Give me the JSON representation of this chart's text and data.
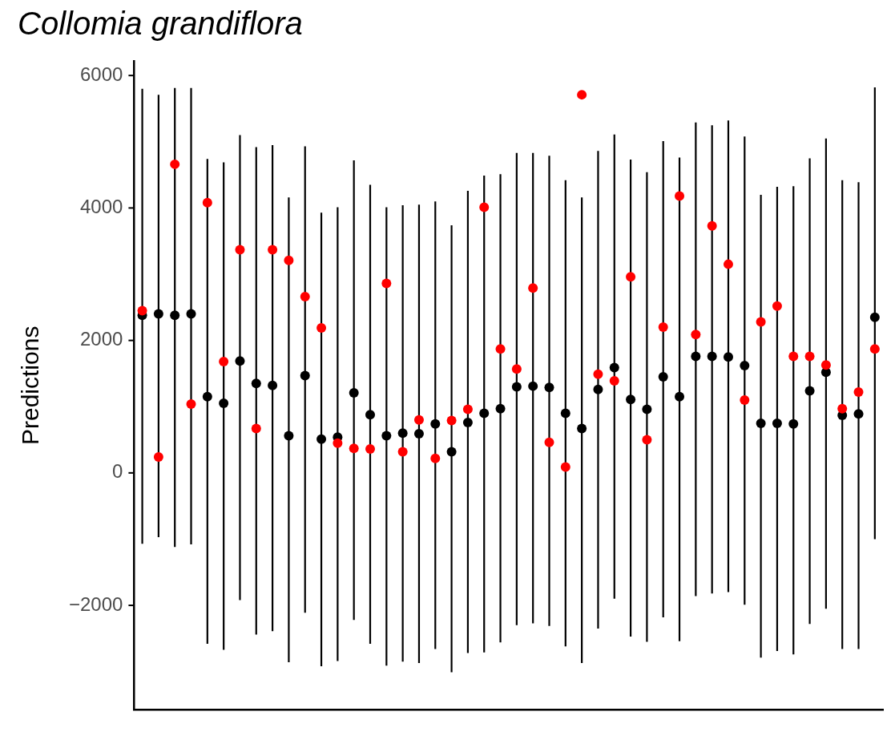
{
  "chart_data": {
    "type": "scatter",
    "title": "Collomia grandiflora",
    "ylabel": "Predictions",
    "categories": [
      null,
      null,
      null,
      null,
      null,
      null,
      null,
      null,
      null,
      null,
      null,
      null,
      null,
      null,
      null,
      null,
      null,
      null,
      null,
      null,
      null,
      null,
      null,
      null,
      null,
      null,
      null,
      null,
      null,
      null,
      null,
      null,
      null,
      null,
      null,
      null,
      null,
      null,
      null,
      null,
      null,
      null,
      null,
      null,
      null,
      null
    ],
    "series": [
      {
        "color": "#000000",
        "values": [
          2380,
          2400,
          2380,
          2400,
          1150,
          1050,
          1690,
          1350,
          1320,
          560,
          1470,
          510,
          540,
          1210,
          880,
          560,
          600,
          590,
          740,
          320,
          760,
          900,
          970,
          1300,
          1310,
          1290,
          900,
          670,
          1260,
          1590,
          1110,
          960,
          1450,
          1150,
          1760,
          1760,
          1750,
          1620,
          750,
          750,
          740,
          1240,
          1520,
          870,
          890,
          2350
        ],
        "errors": [
          [
            -1070,
            5800
          ],
          [
            -970,
            5710
          ],
          [
            -1120,
            5810
          ],
          [
            -1080,
            5810
          ],
          [
            -2580,
            4740
          ],
          [
            -2670,
            4690
          ],
          [
            -1920,
            5100
          ],
          [
            -2440,
            4920
          ],
          [
            -2390,
            4950
          ],
          [
            -2860,
            4160
          ],
          [
            -2110,
            4930
          ],
          [
            -2920,
            3930
          ],
          [
            -2840,
            4010
          ],
          [
            -2220,
            4720
          ],
          [
            -2580,
            4350
          ],
          [
            -2910,
            4010
          ],
          [
            -2850,
            4040
          ],
          [
            -2870,
            4050
          ],
          [
            -2660,
            4100
          ],
          [
            -3010,
            3740
          ],
          [
            -2720,
            4260
          ],
          [
            -2710,
            4490
          ],
          [
            -2560,
            4510
          ],
          [
            -2300,
            4830
          ],
          [
            -2270,
            4830
          ],
          [
            -2310,
            4790
          ],
          [
            -2620,
            4420
          ],
          [
            -2870,
            4160
          ],
          [
            -2350,
            4860
          ],
          [
            -1900,
            5110
          ],
          [
            -2470,
            4730
          ],
          [
            -2550,
            4540
          ],
          [
            -2180,
            5010
          ],
          [
            -2540,
            4760
          ],
          [
            -1860,
            5290
          ],
          [
            -1820,
            5250
          ],
          [
            -1800,
            5320
          ],
          [
            -1990,
            5080
          ],
          [
            -2790,
            4200
          ],
          [
            -2690,
            4320
          ],
          [
            -2740,
            4330
          ],
          [
            -2280,
            4750
          ],
          [
            -2050,
            5050
          ],
          [
            -2660,
            4420
          ],
          [
            -2660,
            4390
          ],
          [
            -1000,
            5820
          ]
        ]
      },
      {
        "color": "#ff0000",
        "values": [
          2450,
          240,
          4660,
          1040,
          4080,
          1680,
          3370,
          670,
          3370,
          3210,
          2660,
          2190,
          450,
          370,
          360,
          2860,
          320,
          800,
          220,
          790,
          960,
          4010,
          1870,
          1570,
          2790,
          460,
          90,
          5710,
          1490,
          1390,
          2960,
          500,
          2200,
          4180,
          2090,
          3730,
          3150,
          1100,
          2280,
          2520,
          1760,
          1760,
          1630,
          970,
          1220,
          1870
        ]
      }
    ],
    "ylim": [
      -3580,
      6220
    ],
    "yticks": [
      -2000,
      0,
      2000,
      4000,
      6000
    ],
    "tick_labels": "y",
    "marker": "circle",
    "legend": false
  }
}
